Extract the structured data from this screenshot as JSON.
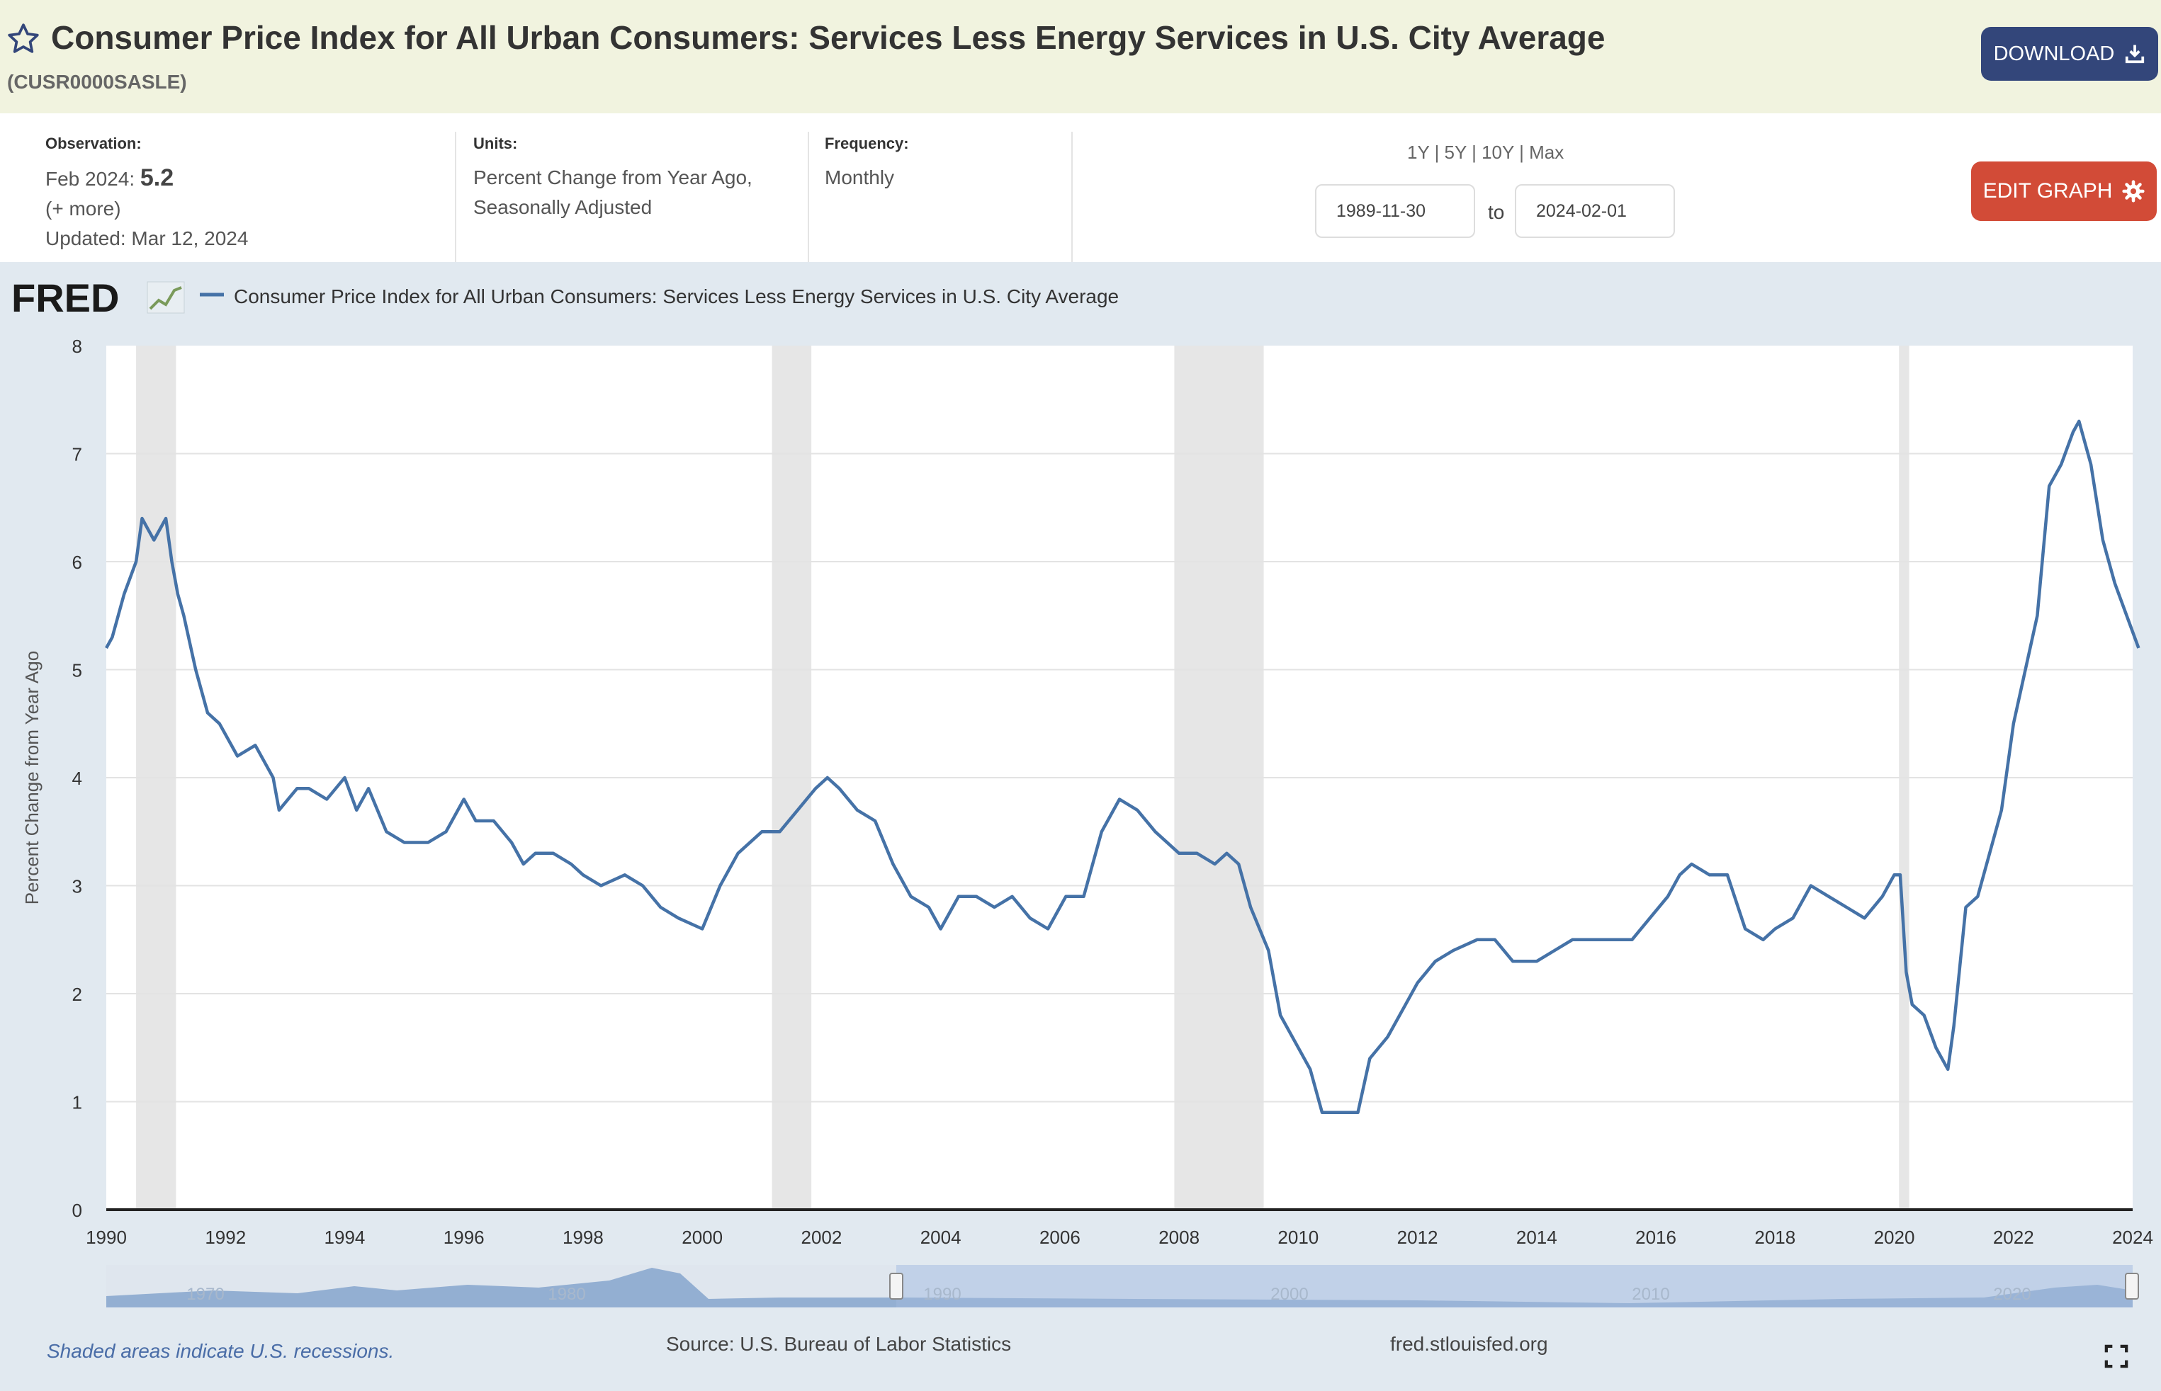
{
  "header": {
    "title": "Consumer Price Index for All Urban Consumers: Services Less Energy Services in U.S. City Average",
    "series_id": "(CUSR0000SASLE)",
    "download_label": "DOWNLOAD"
  },
  "meta": {
    "observation_label": "Observation:",
    "observation_date": "Feb 2024:",
    "observation_value": "5.2",
    "more_link": "(+ more)",
    "updated": "Updated: Mar 12, 2024",
    "units_label": "Units:",
    "units_line1": "Percent Change from Year Ago,",
    "units_line2": "Seasonally Adjusted",
    "frequency_label": "Frequency:",
    "frequency_value": "Monthly"
  },
  "range": {
    "links": [
      "1Y",
      "5Y",
      "10Y",
      "Max"
    ],
    "start": "1989-11-30",
    "to_label": "to",
    "end": "2024-02-01"
  },
  "edit_graph_label": "EDIT GRAPH",
  "colors": {
    "series": "#4572a7",
    "recession": "#e6e6e6",
    "header_bg": "#f1f3df",
    "download_bg": "#33467a",
    "edit_bg": "#d24b37"
  },
  "chart_data": {
    "type": "line",
    "logo_text": "FRED",
    "legend": "Consumer Price Index for All Urban Consumers: Services Less Energy Services in U.S. City Average",
    "ylabel": "Percent Change from Year Ago",
    "ylim": [
      0,
      8
    ],
    "xlim": [
      1990,
      2024
    ],
    "y_ticks": [
      "0",
      "1",
      "2",
      "3",
      "4",
      "5",
      "6",
      "7",
      "8"
    ],
    "x_ticks": [
      "1990",
      "1992",
      "1994",
      "1996",
      "1998",
      "2000",
      "2002",
      "2004",
      "2006",
      "2008",
      "2010",
      "2012",
      "2014",
      "2016",
      "2018",
      "2020",
      "2022",
      "2024"
    ],
    "recessions": [
      [
        1990.5,
        1991.17
      ],
      [
        2001.17,
        2001.83
      ],
      [
        2007.92,
        2009.42
      ],
      [
        2020.08,
        2020.25
      ]
    ],
    "grid": true,
    "series": [
      {
        "name": "Consumer Price Index for All Urban Consumers: Services Less Energy Services in U.S. City Average",
        "x": [
          1990.0,
          1990.1,
          1990.2,
          1990.3,
          1990.5,
          1990.6,
          1990.7,
          1990.8,
          1991.0,
          1991.1,
          1991.2,
          1991.3,
          1991.5,
          1991.7,
          1991.9,
          1992.2,
          1992.5,
          1992.8,
          1992.9,
          1993.2,
          1993.4,
          1993.7,
          1994.0,
          1994.2,
          1994.4,
          1994.7,
          1995.0,
          1995.4,
          1995.7,
          1996.0,
          1996.2,
          1996.5,
          1996.8,
          1997.0,
          1997.2,
          1997.5,
          1997.8,
          1998.0,
          1998.3,
          1998.7,
          1999.0,
          1999.3,
          1999.6,
          2000.0,
          2000.3,
          2000.6,
          2001.0,
          2001.3,
          2001.6,
          2001.9,
          2002.1,
          2002.3,
          2002.6,
          2002.9,
          2003.2,
          2003.5,
          2003.8,
          2004.0,
          2004.3,
          2004.6,
          2004.9,
          2005.2,
          2005.5,
          2005.8,
          2006.1,
          2006.4,
          2006.7,
          2007.0,
          2007.3,
          2007.6,
          2008.0,
          2008.3,
          2008.6,
          2008.8,
          2009.0,
          2009.2,
          2009.5,
          2009.7,
          2010.0,
          2010.2,
          2010.4,
          2010.6,
          2010.8,
          2011.0,
          2011.2,
          2011.5,
          2011.8,
          2012.0,
          2012.3,
          2012.6,
          2013.0,
          2013.3,
          2013.6,
          2014.0,
          2014.3,
          2014.6,
          2015.0,
          2015.3,
          2015.6,
          2015.9,
          2016.2,
          2016.4,
          2016.6,
          2016.9,
          2017.2,
          2017.5,
          2017.8,
          2018.0,
          2018.3,
          2018.6,
          2018.9,
          2019.2,
          2019.5,
          2019.8,
          2020.0,
          2020.1,
          2020.2,
          2020.3,
          2020.5,
          2020.7,
          2020.9,
          2021.0,
          2021.2,
          2021.4,
          2021.6,
          2021.8,
          2022.0,
          2022.2,
          2022.4,
          2022.6,
          2022.8,
          2023.0,
          2023.1,
          2023.3,
          2023.5,
          2023.7,
          2023.9,
          2024.1
        ],
        "values": [
          5.2,
          5.3,
          5.5,
          5.7,
          6.0,
          6.4,
          6.3,
          6.2,
          6.4,
          6.0,
          5.7,
          5.5,
          5.0,
          4.6,
          4.5,
          4.2,
          4.3,
          4.0,
          3.7,
          3.9,
          3.9,
          3.8,
          4.0,
          3.7,
          3.9,
          3.5,
          3.4,
          3.4,
          3.5,
          3.8,
          3.6,
          3.6,
          3.4,
          3.2,
          3.3,
          3.3,
          3.2,
          3.1,
          3.0,
          3.1,
          3.0,
          2.8,
          2.7,
          2.6,
          3.0,
          3.3,
          3.5,
          3.5,
          3.7,
          3.9,
          4.0,
          3.9,
          3.7,
          3.6,
          3.2,
          2.9,
          2.8,
          2.6,
          2.9,
          2.9,
          2.8,
          2.9,
          2.7,
          2.6,
          2.9,
          2.9,
          3.5,
          3.8,
          3.7,
          3.5,
          3.3,
          3.3,
          3.2,
          3.3,
          3.2,
          2.8,
          2.4,
          1.8,
          1.5,
          1.3,
          0.9,
          0.9,
          0.9,
          0.9,
          1.4,
          1.6,
          1.9,
          2.1,
          2.3,
          2.4,
          2.5,
          2.5,
          2.3,
          2.3,
          2.4,
          2.5,
          2.5,
          2.5,
          2.5,
          2.7,
          2.9,
          3.1,
          3.2,
          3.1,
          3.1,
          2.6,
          2.5,
          2.6,
          2.7,
          3.0,
          2.9,
          2.8,
          2.7,
          2.9,
          3.1,
          3.1,
          2.2,
          1.9,
          1.8,
          1.5,
          1.3,
          1.7,
          2.8,
          2.9,
          3.3,
          3.7,
          4.5,
          5.0,
          5.5,
          6.7,
          6.9,
          7.2,
          7.3,
          6.9,
          6.2,
          5.8,
          5.5,
          5.2
        ]
      }
    ],
    "navigator": {
      "tick_labels": [
        "1970",
        "1980",
        "1990",
        "2000",
        "2010",
        "2020"
      ]
    },
    "footer": {
      "note": "Shaded areas indicate U.S. recessions.",
      "source": "Source: U.S. Bureau of Labor Statistics",
      "url": "fred.stlouisfed.org"
    }
  }
}
